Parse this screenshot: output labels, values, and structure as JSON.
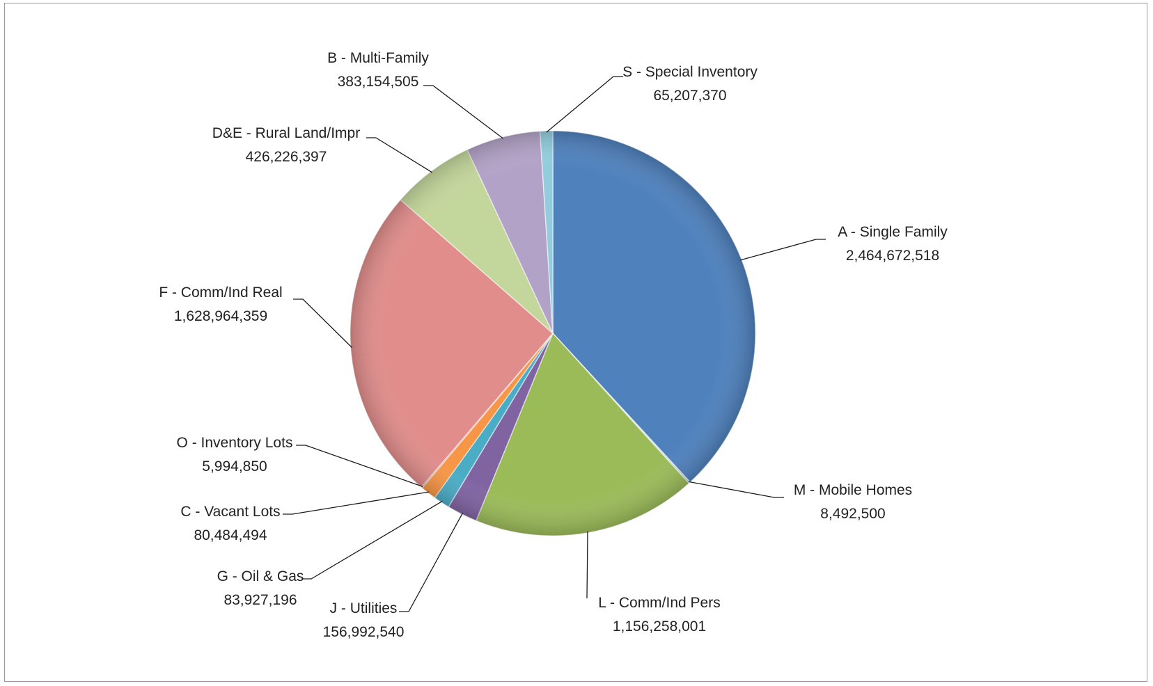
{
  "chart_data": {
    "type": "pie",
    "title": "",
    "slices": [
      {
        "label": "A - Single Family",
        "value": 2464672518,
        "value_text": "2,464,672,518",
        "color": "#4F81BD"
      },
      {
        "label": "M - Mobile Homes",
        "value": 8492500,
        "value_text": "8,492,500",
        "color": "#B7C9E2"
      },
      {
        "label": "L - Comm/Ind Pers",
        "value": 1156258001,
        "value_text": "1,156,258,001",
        "color": "#9BBB59"
      },
      {
        "label": "J - Utilities",
        "value": 156992540,
        "value_text": "156,992,540",
        "color": "#8064A2"
      },
      {
        "label": "G - Oil & Gas",
        "value": 83927196,
        "value_text": "83,927,196",
        "color": "#4BACC6"
      },
      {
        "label": "C - Vacant Lots",
        "value": 80484494,
        "value_text": "80,484,494",
        "color": "#F79646"
      },
      {
        "label": "O - Inventory Lots",
        "value": 5994850,
        "value_text": "5,994,850",
        "color": "#C0504D"
      },
      {
        "label": "F - Comm/Ind Real",
        "value": 1628964359,
        "value_text": "1,628,964,359",
        "color": "#E08D8B"
      },
      {
        "label": "D&E - Rural Land/Impr",
        "value": 426226397,
        "value_text": "426,226,397",
        "color": "#C3D69B"
      },
      {
        "label": "B - Multi-Family",
        "value": 383154505,
        "value_text": "383,154,505",
        "color": "#B3A2C7"
      },
      {
        "label": "S - Special Inventory",
        "value": 65207370,
        "value_text": "65,207,370",
        "color": "#93CDDD"
      }
    ],
    "start_angle": "12 o'clock",
    "direction": "clockwise",
    "legend": "none",
    "data_labels": "outside-with-leader-lines"
  }
}
